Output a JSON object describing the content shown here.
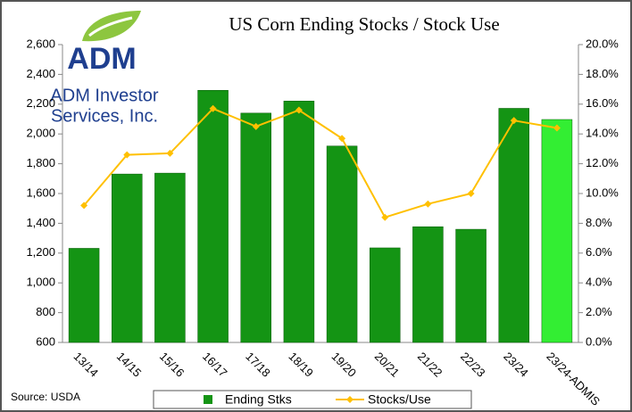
{
  "logo": {
    "brand": "ADM",
    "line1": "ADM Investor",
    "line2": "Services, Inc."
  },
  "source": "Source: USDA",
  "chart_data": {
    "type": "bar-line",
    "title": "US Corn Ending Stocks / Stock Use",
    "categories": [
      "13/14",
      "14/15",
      "15/16",
      "16/17",
      "17/18",
      "18/19",
      "19/20",
      "20/21",
      "21/22",
      "22/23",
      "23/24",
      "23/24-ADMIS"
    ],
    "series": [
      {
        "name": "Ending Stks",
        "type": "bar",
        "color": "#149414",
        "colors": [
          "#149414",
          "#149414",
          "#149414",
          "#149414",
          "#149414",
          "#149414",
          "#149414",
          "#149414",
          "#149414",
          "#149414",
          "#149414",
          "#33ee33"
        ],
        "values": [
          1232,
          1731,
          1737,
          2293,
          2140,
          2221,
          1919,
          1235,
          1377,
          1360,
          2172,
          2097
        ]
      },
      {
        "name": "Stocks/Use",
        "type": "line",
        "axis": "y2",
        "color": "#ffc000",
        "values": [
          9.2,
          12.6,
          12.7,
          15.7,
          14.5,
          15.6,
          13.7,
          8.4,
          9.3,
          10.0,
          14.9,
          14.4
        ]
      }
    ],
    "ylim": [
      600,
      2600
    ],
    "yticks": [
      600,
      800,
      {
        "value": 1000,
        "label": "1,000"
      },
      {
        "value": 1200,
        "label": "1,200"
      },
      {
        "value": 1400,
        "label": "1,400"
      },
      {
        "value": 1600,
        "label": "1,600"
      },
      {
        "value": 1800,
        "label": "1,800"
      },
      {
        "value": 2000,
        "label": "2,000"
      },
      {
        "value": 2200,
        "label": "2,200"
      },
      {
        "value": 2400,
        "label": "2,400"
      },
      {
        "value": 2600,
        "label": "2,600"
      }
    ],
    "y2lim": [
      0,
      20
    ],
    "y2ticks": [
      {
        "value": 0,
        "label": "0.0%"
      },
      {
        "value": 2,
        "label": "2.0%"
      },
      {
        "value": 4,
        "label": "4.0%"
      },
      {
        "value": 6,
        "label": "6.0%"
      },
      {
        "value": 8,
        "label": "8.0%"
      },
      {
        "value": 10,
        "label": "10.0%"
      },
      {
        "value": 12,
        "label": "12.0%"
      },
      {
        "value": 14,
        "label": "14.0%"
      },
      {
        "value": 16,
        "label": "16.0%"
      },
      {
        "value": 18,
        "label": "18.0%"
      },
      {
        "value": 20,
        "label": "20.0%"
      }
    ],
    "legend": "bottom",
    "grid": false
  }
}
